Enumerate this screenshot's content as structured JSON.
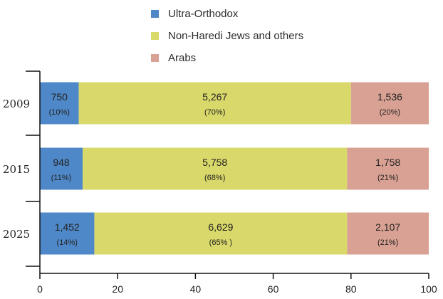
{
  "chart_data": {
    "type": "bar",
    "orientation": "horizontal",
    "stacked": true,
    "categories": [
      "2009",
      "2015",
      "2025"
    ],
    "series": [
      {
        "name": "Ultra-Orthodox",
        "color": "#4f88c8",
        "values": [
          10,
          11,
          14
        ],
        "counts": [
          "750",
          "948",
          "1,452"
        ],
        "percent_labels": [
          "(10%)",
          "(11%)",
          "(14%)"
        ]
      },
      {
        "name": "Non-Haredi Jews and others",
        "color": "#d9d86a",
        "values": [
          70,
          68,
          65
        ],
        "counts": [
          "5,267",
          "5,758",
          "6,629"
        ],
        "percent_labels": [
          "(70%)",
          "(68%)",
          "(65% )"
        ]
      },
      {
        "name": "Arabs",
        "color": "#d9a193",
        "values": [
          20,
          21,
          21
        ],
        "counts": [
          "1,536",
          "1,758",
          "2,107"
        ],
        "percent_labels": [
          "(20%)",
          "(21%)",
          "(21%)"
        ]
      }
    ],
    "xlim": [
      0,
      100
    ],
    "xticks": [
      "0",
      "20",
      "40",
      "60",
      "80",
      "100"
    ],
    "title": "",
    "xlabel": "",
    "ylabel": "",
    "legend_position": "top-center",
    "grid": false
  }
}
